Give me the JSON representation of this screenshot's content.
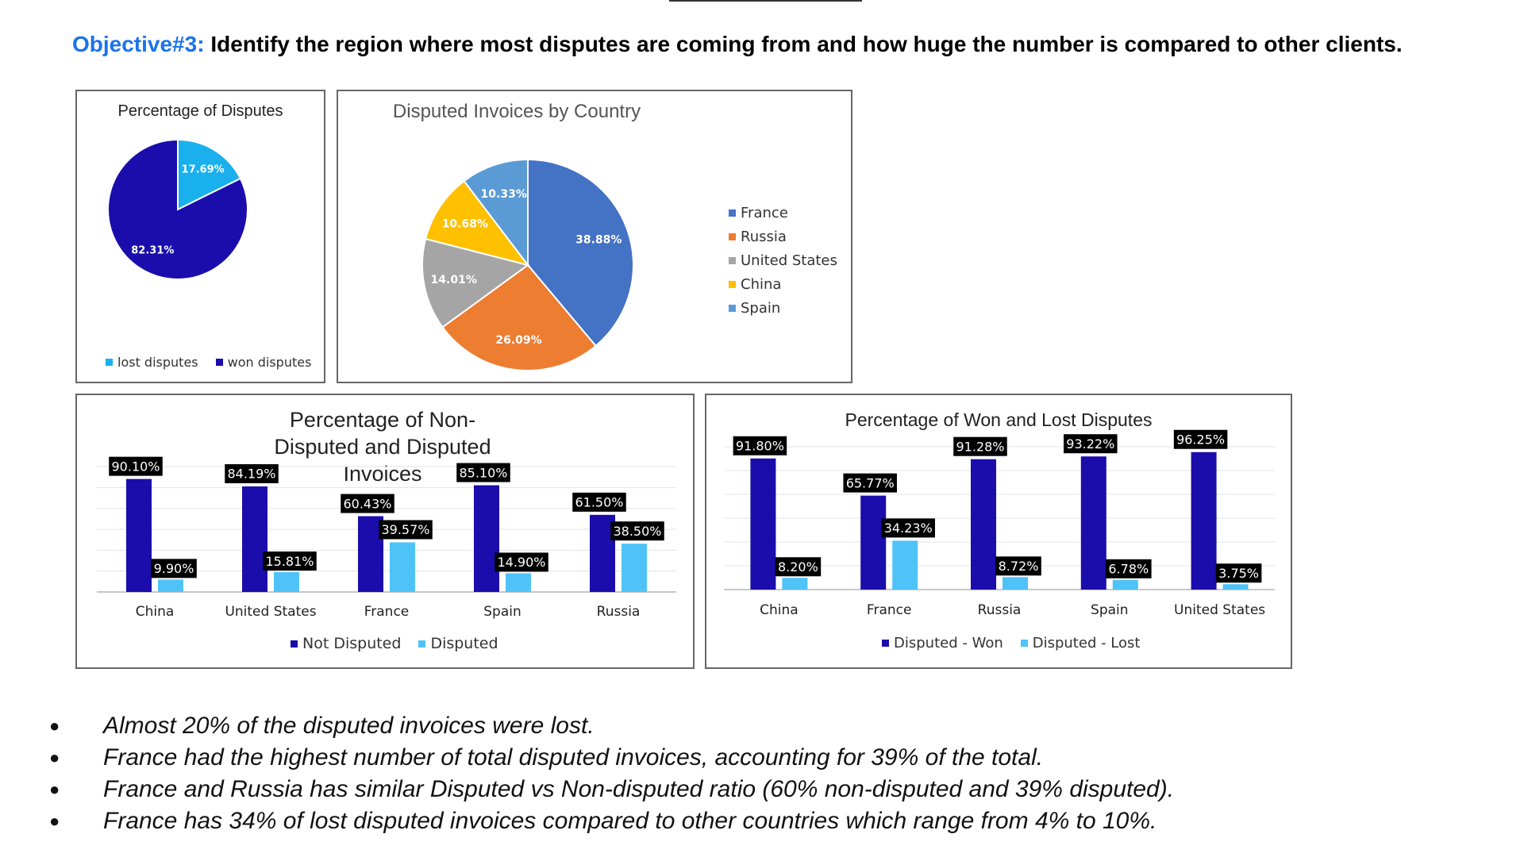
{
  "heading": {
    "objective": "Objective#3:",
    "text": "Identify the region where most disputes are coming from and how huge the number is compared to other clients."
  },
  "colors": {
    "objective": "#1a73e8",
    "dark_blue": "#1a0dab",
    "light_blue": "#4fc3f7",
    "lost_disputes": "#1ab0ee",
    "won_disputes": "#1a0dab",
    "france": "#4472c4",
    "russia": "#ed7d31",
    "united_states": "#a5a5a5",
    "china": "#ffc000",
    "spain": "#5b9bd5"
  },
  "chart_data": [
    {
      "id": "percentage_of_disputes",
      "type": "pie",
      "title": "Percentage of Disputes",
      "slices": [
        {
          "label": "lost disputes",
          "value": 17.69,
          "display": "17.69%",
          "color": "#1ab0ee"
        },
        {
          "label": "won disputes",
          "value": 82.31,
          "display": "82.31%",
          "color": "#1a0dab"
        }
      ],
      "legend": "bottom"
    },
    {
      "id": "disputed_invoices_by_country",
      "type": "pie",
      "title": "Disputed Invoices by Country",
      "slices": [
        {
          "label": "France",
          "value": 38.88,
          "display": "38.88%",
          "color": "#4472c4"
        },
        {
          "label": "Russia",
          "value": 26.09,
          "display": "26.09%",
          "color": "#ed7d31"
        },
        {
          "label": "United States",
          "value": 14.01,
          "display": "14.01%",
          "color": "#a5a5a5"
        },
        {
          "label": "China",
          "value": 10.68,
          "display": "10.68%",
          "color": "#ffc000"
        },
        {
          "label": "Spain",
          "value": 10.33,
          "display": "10.33%",
          "color": "#5b9bd5"
        }
      ],
      "legend": "right"
    },
    {
      "id": "non_disputed_vs_disputed",
      "type": "bar",
      "title": "Percentage of Non-Disputed and Disputed Invoices",
      "categories": [
        "China",
        "United States",
        "France",
        "Spain",
        "Russia"
      ],
      "series": [
        {
          "name": "Not Disputed",
          "values": [
            90.1,
            84.19,
            60.43,
            85.1,
            61.5
          ],
          "labels": [
            "90.10%",
            "84.19%",
            "60.43%",
            "85.10%",
            "61.50%"
          ],
          "color": "#1a0dab"
        },
        {
          "name": "Disputed",
          "values": [
            9.9,
            15.81,
            39.57,
            14.9,
            38.5
          ],
          "labels": [
            "9.90%",
            "15.81%",
            "39.57%",
            "14.90%",
            "38.50%"
          ],
          "color": "#4fc3f7"
        }
      ],
      "ylim": [
        0,
        100
      ],
      "grid": true,
      "legend": "bottom"
    },
    {
      "id": "won_vs_lost_disputes",
      "type": "bar",
      "title": "Percentage of Won and Lost Disputes",
      "categories": [
        "China",
        "France",
        "Russia",
        "Spain",
        "United States"
      ],
      "series": [
        {
          "name": "Disputed - Won",
          "values": [
            91.8,
            65.77,
            91.28,
            93.22,
            96.25
          ],
          "labels": [
            "91.80%",
            "65.77%",
            "91.28%",
            "93.22%",
            "96.25%"
          ],
          "color": "#1a0dab"
        },
        {
          "name": "Disputed - Lost",
          "values": [
            8.2,
            34.23,
            8.72,
            6.78,
            3.75
          ],
          "labels": [
            "8.20%",
            "34.23%",
            "8.72%",
            "6.78%",
            "3.75%"
          ],
          "color": "#4fc3f7"
        }
      ],
      "ylim": [
        0,
        100
      ],
      "grid": true,
      "legend": "bottom"
    }
  ],
  "bullets": [
    "Almost 20% of the disputed invoices were lost.",
    "France had the highest number of total disputed invoices, accounting for 39% of the total.",
    "France and Russia has similar Disputed vs Non-disputed ratio (60% non-disputed and 39% disputed).",
    "France has 34% of lost disputed invoices compared to other countries which range from 4% to 10%."
  ]
}
